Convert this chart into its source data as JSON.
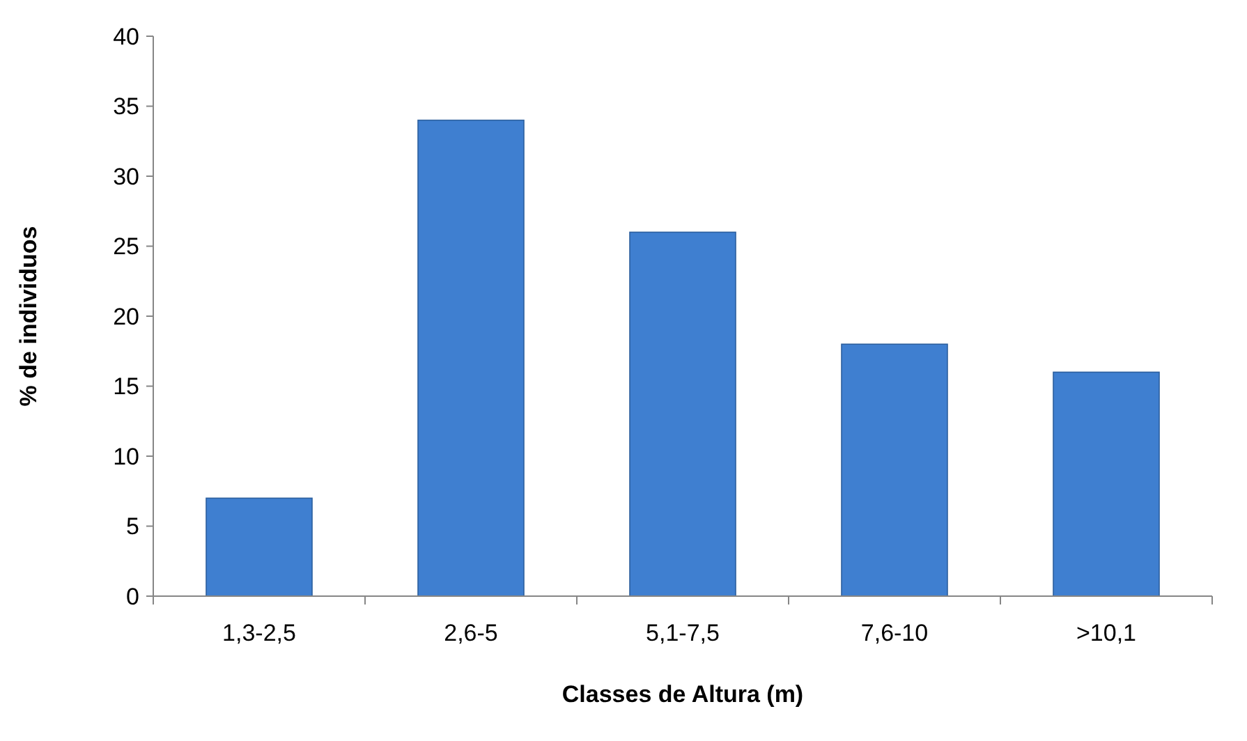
{
  "chart_data": {
    "type": "bar",
    "xlabel": "Classes de Altura (m)",
    "ylabel": "% de individuos",
    "categories": [
      "1,3-2,5",
      "2,6-5",
      "5,1-7,5",
      "7,6-10",
      ">10,1"
    ],
    "values": [
      7,
      34,
      26,
      18,
      16
    ],
    "color": "#3f7fd0",
    "ylim": [
      0,
      40
    ],
    "yticks": [
      0,
      5,
      10,
      15,
      20,
      25,
      30,
      35,
      40
    ],
    "grid": false
  }
}
